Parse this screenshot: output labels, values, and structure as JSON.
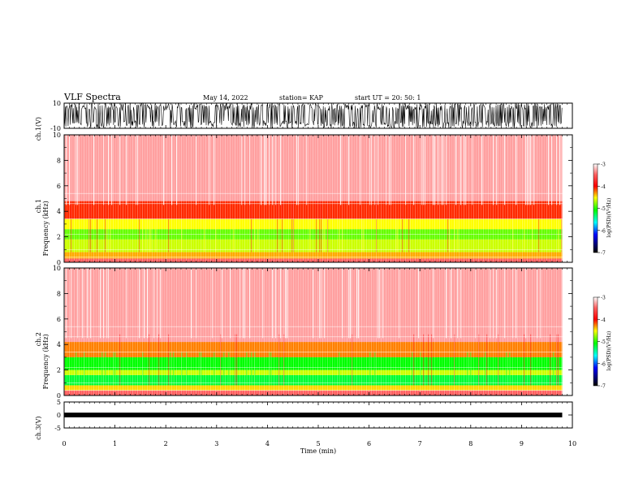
{
  "header": {
    "title": "VLF Spectra",
    "date": "May 14, 2022",
    "station": "station= KAP",
    "start": "start  UT  =   20: 50: 1"
  },
  "chart_data": [
    {
      "type": "line",
      "panel": "ch1-waveform",
      "ylabel": "ch.1(V)",
      "ylim": [
        -10,
        10
      ],
      "yticks": [
        "10",
        "-10"
      ],
      "xlim": [
        0,
        10
      ],
      "note_data": "dense oscillating waveform saturating between about -10 and 10 V over 0 to 9.8 min",
      "amplitude_range": [
        -10,
        10
      ],
      "x_end": 9.8
    },
    {
      "type": "heatmap",
      "panel": "ch1-spectrogram",
      "ylabel": "ch.1\nFrequency  (kHz)",
      "ylim": [
        0,
        10
      ],
      "yticks": [
        "0",
        "2",
        "4",
        "6",
        "8",
        "10"
      ],
      "xlim": [
        0,
        10
      ],
      "x_end": 9.8,
      "bands": [
        {
          "f_low": 0.0,
          "f_high": 0.3,
          "level": -3.5
        },
        {
          "f_low": 0.3,
          "f_high": 0.8,
          "level": -4.4
        },
        {
          "f_low": 0.8,
          "f_high": 1.8,
          "level": -4.7
        },
        {
          "f_low": 1.8,
          "f_high": 2.6,
          "level": -4.9
        },
        {
          "f_low": 2.6,
          "f_high": 3.4,
          "level": -4.6
        },
        {
          "f_low": 3.4,
          "f_high": 4.8,
          "level": -4.1
        },
        {
          "f_low": 4.8,
          "f_high": 10.0,
          "level": -3.3
        }
      ],
      "colorbar": {
        "label": "log(PSD)(V²/Hz)",
        "range": [
          -7,
          -3
        ],
        "ticks": [
          "-3",
          "-4",
          "-5",
          "-6",
          "-7"
        ]
      }
    },
    {
      "type": "heatmap",
      "panel": "ch2-spectrogram",
      "ylabel": "ch.2\nFrequency  (kHz)",
      "ylim": [
        0,
        10
      ],
      "yticks": [
        "0",
        "2",
        "4",
        "6",
        "8",
        "10"
      ],
      "xlim": [
        0,
        10
      ],
      "x_end": 9.8,
      "bands": [
        {
          "f_low": 0.0,
          "f_high": 0.4,
          "level": -3.5
        },
        {
          "f_low": 0.4,
          "f_high": 0.8,
          "level": -4.5
        },
        {
          "f_low": 0.8,
          "f_high": 1.6,
          "level": -5.2
        },
        {
          "f_low": 1.6,
          "f_high": 2.0,
          "level": -4.7
        },
        {
          "f_low": 2.0,
          "f_high": 3.0,
          "level": -5.1
        },
        {
          "f_low": 3.0,
          "f_high": 4.2,
          "level": -4.3
        },
        {
          "f_low": 4.2,
          "f_high": 10.0,
          "level": -3.3
        }
      ],
      "colorbar": {
        "label": "log(PSD)(V²/Hz)",
        "range": [
          -7,
          -3
        ],
        "ticks": [
          "-3",
          "-4",
          "-5",
          "-6",
          "-7"
        ]
      }
    },
    {
      "type": "line",
      "panel": "ch3-waveform",
      "ylabel": "ch.3(V)",
      "ylim": [
        -5,
        5
      ],
      "yticks": [
        "5",
        "0",
        "-5"
      ],
      "xlim": [
        0,
        10
      ],
      "x_end": 9.8,
      "amplitude_range": [
        -0.9,
        0.9
      ],
      "offset": 0
    }
  ],
  "xaxis": {
    "label": "Time  (min)",
    "ticks": [
      "0",
      "1",
      "2",
      "3",
      "4",
      "5",
      "6",
      "7",
      "8",
      "9",
      "10"
    ],
    "range": [
      0,
      10
    ]
  }
}
